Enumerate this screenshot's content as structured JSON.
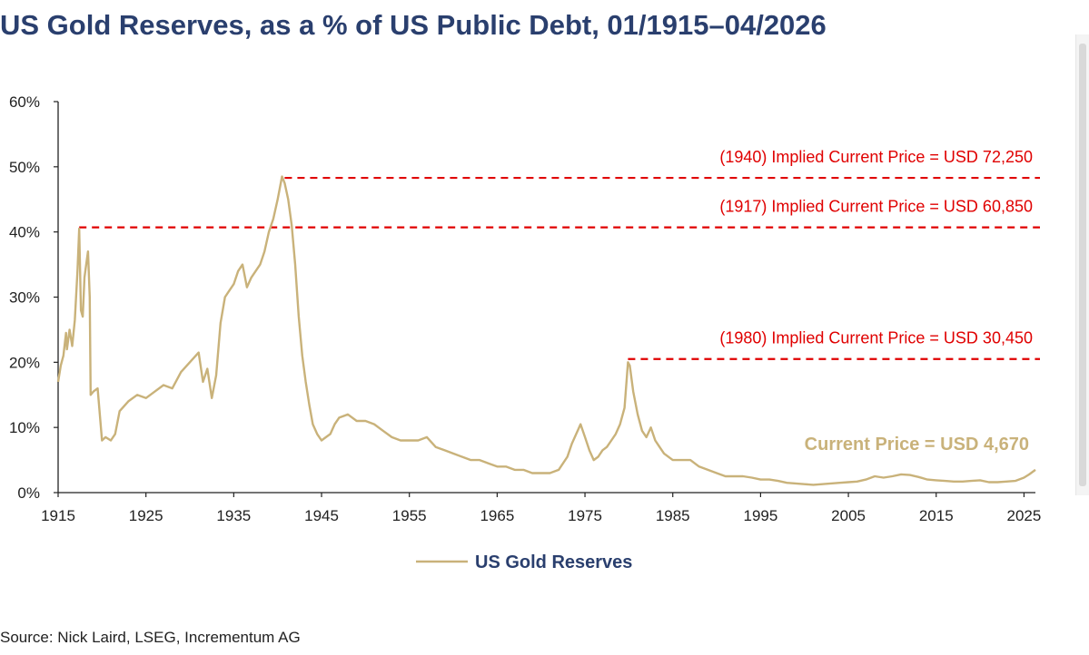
{
  "page": {
    "title": "US Gold Reserves, as a % of US Public Debt, 01/1915–04/2026",
    "source": "Source: Nick Laird, LSEG, Incrementum AG"
  },
  "colors": {
    "title": "#2a3f6e",
    "series": "#c9b27a",
    "annotation": "#e00000",
    "current_price": "#c9b27a",
    "axis": "#222222",
    "legend_text": "#2a3f6e"
  },
  "chart_data": {
    "type": "line",
    "title": "US Gold Reserves, as a % of US Public Debt, 01/1915–04/2026",
    "xlim": [
      1915,
      2026.3
    ],
    "ylim": [
      0,
      60
    ],
    "x_ticks": [
      1915,
      1925,
      1935,
      1945,
      1955,
      1965,
      1975,
      1985,
      1995,
      2005,
      2015,
      2025
    ],
    "y_ticks": [
      0,
      10,
      20,
      30,
      40,
      50,
      60
    ],
    "y_tick_labels": [
      "0%",
      "10%",
      "20%",
      "30%",
      "40%",
      "50%",
      "60%"
    ],
    "grid": false,
    "legend_position": "bottom-center",
    "series": [
      {
        "name": "US Gold Reserves",
        "x": [
          1915.0,
          1915.3,
          1915.6,
          1915.9,
          1916.0,
          1916.3,
          1916.6,
          1916.9,
          1917.2,
          1917.4,
          1917.6,
          1917.8,
          1918.0,
          1918.2,
          1918.4,
          1918.6,
          1918.7,
          1919.0,
          1919.5,
          1920.0,
          1920.4,
          1921.0,
          1921.5,
          1922.0,
          1923.0,
          1924.0,
          1925.0,
          1926.0,
          1927.0,
          1928.0,
          1929.0,
          1930.0,
          1931.0,
          1931.5,
          1932.0,
          1932.5,
          1933.0,
          1933.5,
          1934.0,
          1934.5,
          1935.0,
          1935.5,
          1936.0,
          1936.5,
          1937.0,
          1937.5,
          1938.0,
          1938.5,
          1939.0,
          1939.5,
          1940.0,
          1940.5,
          1940.8,
          1941.2,
          1941.6,
          1942.0,
          1942.4,
          1942.8,
          1943.2,
          1943.6,
          1944.0,
          1944.5,
          1945.0,
          1945.5,
          1946.0,
          1946.5,
          1947.0,
          1948.0,
          1949.0,
          1950.0,
          1951.0,
          1952.0,
          1953.0,
          1954.0,
          1955.0,
          1956.0,
          1957.0,
          1958.0,
          1959.0,
          1960.0,
          1961.0,
          1962.0,
          1963.0,
          1964.0,
          1965.0,
          1966.0,
          1967.0,
          1968.0,
          1969.0,
          1970.0,
          1971.0,
          1972.0,
          1973.0,
          1973.5,
          1974.0,
          1974.5,
          1975.0,
          1975.5,
          1976.0,
          1976.5,
          1977.0,
          1977.5,
          1978.0,
          1978.5,
          1979.0,
          1979.5,
          1979.9,
          1980.1,
          1980.5,
          1981.0,
          1981.5,
          1982.0,
          1982.5,
          1983.0,
          1983.5,
          1984.0,
          1985.0,
          1986.0,
          1987.0,
          1988.0,
          1989.0,
          1990.0,
          1991.0,
          1992.0,
          1993.0,
          1994.0,
          1995.0,
          1996.0,
          1997.0,
          1998.0,
          1999.0,
          2000.0,
          2001.0,
          2002.0,
          2003.0,
          2004.0,
          2005.0,
          2006.0,
          2007.0,
          2008.0,
          2009.0,
          2010.0,
          2011.0,
          2012.0,
          2013.0,
          2014.0,
          2015.0,
          2016.0,
          2017.0,
          2018.0,
          2019.0,
          2020.0,
          2021.0,
          2022.0,
          2023.0,
          2024.0,
          2025.0,
          2025.6,
          2026.0,
          2026.3
        ],
        "values": [
          17.0,
          19.5,
          21.0,
          24.5,
          22.0,
          25.0,
          22.5,
          26.5,
          34.0,
          40.5,
          28.0,
          27.0,
          33.0,
          35.0,
          37.0,
          30.0,
          15.0,
          15.5,
          16.0,
          8.0,
          8.5,
          8.0,
          9.0,
          12.5,
          14.0,
          15.0,
          14.5,
          15.5,
          16.5,
          16.0,
          18.5,
          20.0,
          21.5,
          17.0,
          19.0,
          14.5,
          18.0,
          26.0,
          30.0,
          31.0,
          32.0,
          34.0,
          35.0,
          31.5,
          33.0,
          34.0,
          35.0,
          37.0,
          40.0,
          42.0,
          45.0,
          48.5,
          47.5,
          45.0,
          41.0,
          35.0,
          27.0,
          21.0,
          17.0,
          13.5,
          10.5,
          9.0,
          8.0,
          8.5,
          9.0,
          10.5,
          11.5,
          12.0,
          11.0,
          11.0,
          10.5,
          9.5,
          8.5,
          8.0,
          8.0,
          8.0,
          8.5,
          7.0,
          6.5,
          6.0,
          5.5,
          5.0,
          5.0,
          4.5,
          4.0,
          4.0,
          3.5,
          3.5,
          3.0,
          3.0,
          3.0,
          3.5,
          5.5,
          7.5,
          9.0,
          10.5,
          8.5,
          6.5,
          5.0,
          5.5,
          6.5,
          7.0,
          8.0,
          9.0,
          10.5,
          13.0,
          20.0,
          19.5,
          15.5,
          12.0,
          9.5,
          8.5,
          10.0,
          8.0,
          7.0,
          6.0,
          5.0,
          5.0,
          5.0,
          4.0,
          3.5,
          3.0,
          2.5,
          2.5,
          2.5,
          2.3,
          2.0,
          2.0,
          1.8,
          1.5,
          1.4,
          1.3,
          1.2,
          1.3,
          1.4,
          1.5,
          1.6,
          1.7,
          2.0,
          2.5,
          2.3,
          2.5,
          2.8,
          2.7,
          2.4,
          2.0,
          1.9,
          1.8,
          1.7,
          1.7,
          1.8,
          1.9,
          1.6,
          1.6,
          1.7,
          1.8,
          2.3,
          2.8,
          3.2,
          3.5
        ]
      }
    ],
    "reference_lines": [
      {
        "label": "(1940) Implied Current Price = USD 72,250",
        "y": 48.3,
        "x_start": 1940.8
      },
      {
        "label": "(1917) Implied Current Price = USD 60,850",
        "y": 40.7,
        "x_start": 1917.4
      },
      {
        "label": "(1980) Implied Current Price = USD 30,450",
        "y": 20.5,
        "x_start": 1979.9
      }
    ],
    "current_price_label": "Current Price = USD 4,670",
    "legend_label": "US Gold Reserves"
  }
}
